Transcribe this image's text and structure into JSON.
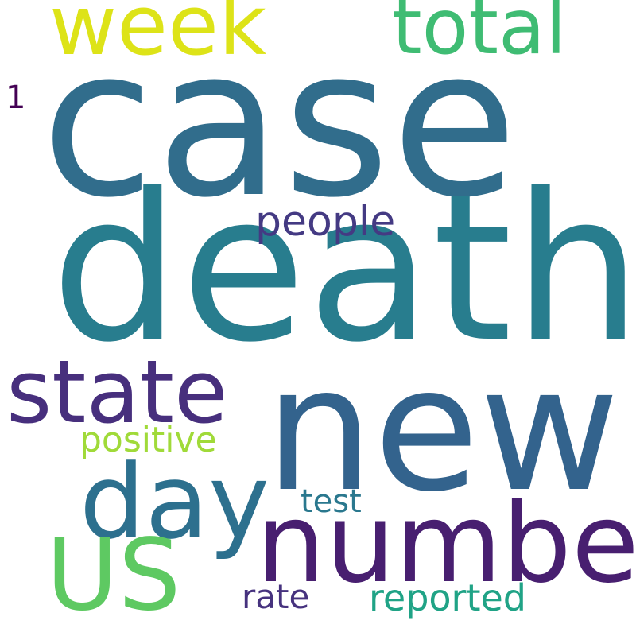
{
  "cloud": {
    "background": "#ffffff",
    "words": [
      {
        "key": "case",
        "text": "case",
        "color": "#316d8c"
      },
      {
        "key": "death",
        "text": "death",
        "color": "#287d8e"
      },
      {
        "key": "new",
        "text": "new",
        "color": "#33638d"
      },
      {
        "key": "number",
        "text": "number",
        "color": "#481f70"
      },
      {
        "key": "state",
        "text": "state",
        "color": "#472f7d"
      },
      {
        "key": "day",
        "text": "day",
        "color": "#2d708e"
      },
      {
        "key": "US",
        "text": "US",
        "color": "#5ec962"
      },
      {
        "key": "week",
        "text": "week",
        "color": "#dde318"
      },
      {
        "key": "total",
        "text": "total",
        "color": "#3fbc73"
      },
      {
        "key": "people",
        "text": "people",
        "color": "#443a83"
      },
      {
        "key": "positive",
        "text": "positive",
        "color": "#a0da39"
      },
      {
        "key": "test",
        "text": "test",
        "color": "#2a788e"
      },
      {
        "key": "rate",
        "text": "rate",
        "color": "#46327e"
      },
      {
        "key": "reported",
        "text": "reported",
        "color": "#20a386"
      },
      {
        "key": "1",
        "text": "1",
        "color": "#440154"
      }
    ]
  }
}
